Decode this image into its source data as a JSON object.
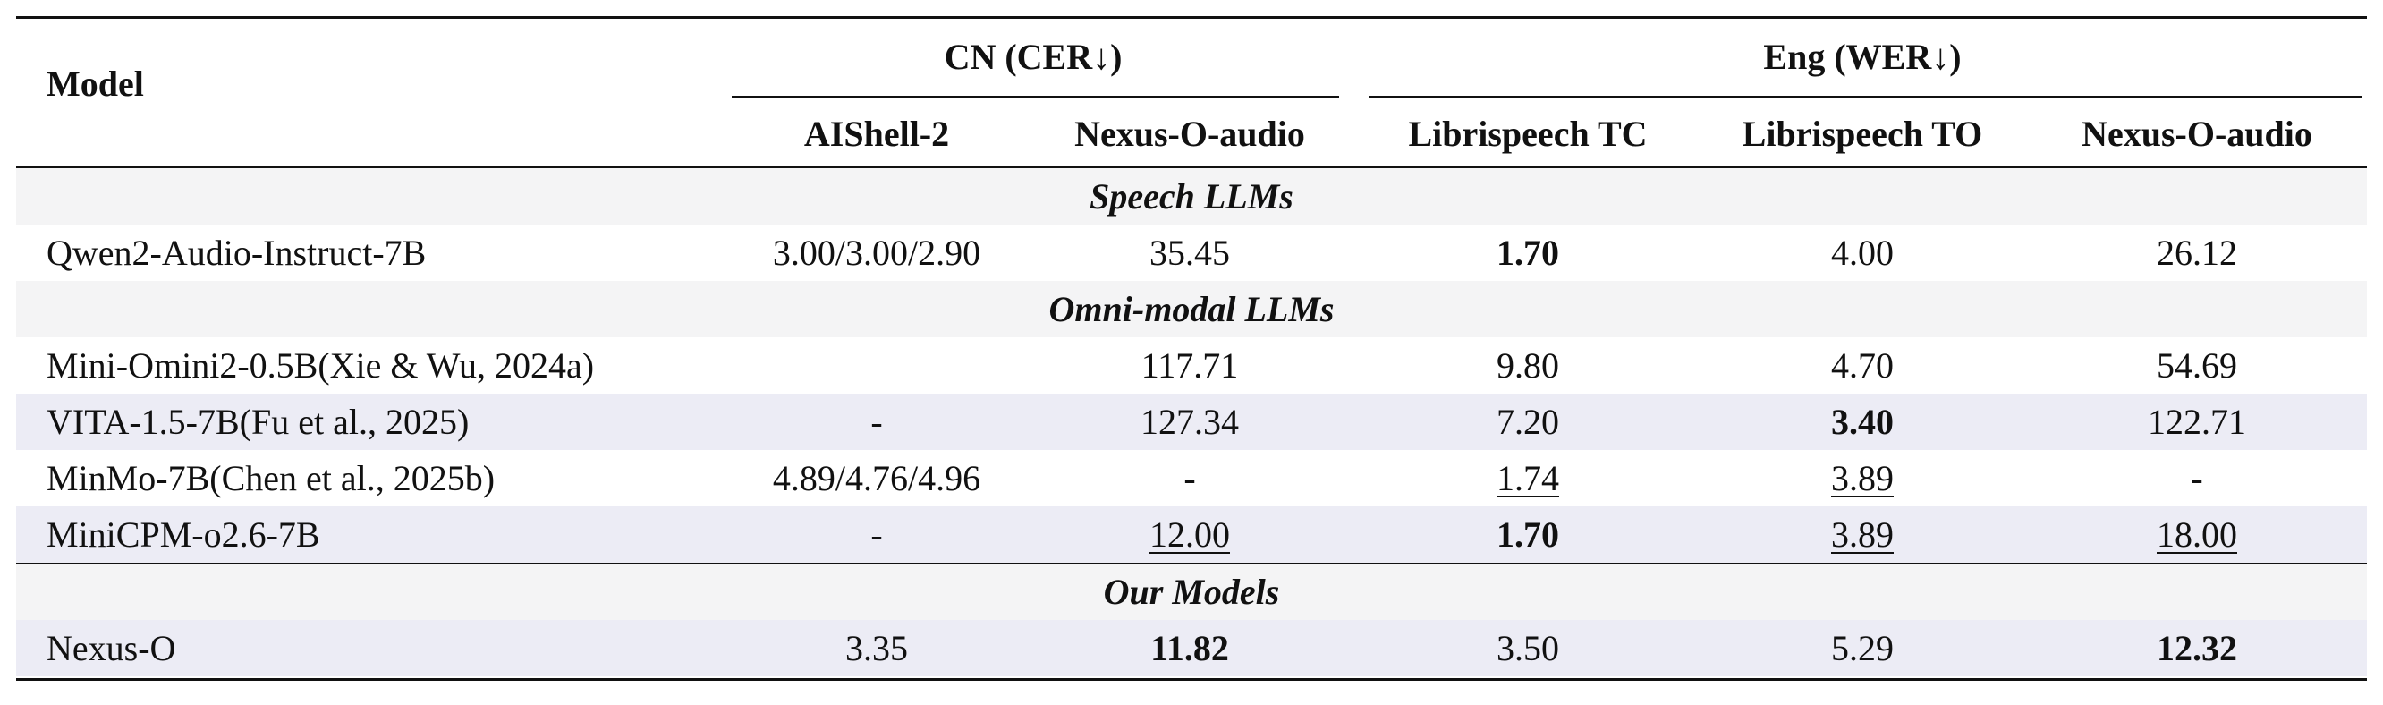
{
  "header": {
    "model_label": "Model",
    "groups": [
      {
        "label": "CN (CER↓)"
      },
      {
        "label": "Eng (WER↓)"
      }
    ],
    "columns": [
      "AIShell-2",
      "Nexus-O-audio",
      "Librispeech TC",
      "Librispeech TO",
      "Nexus-O-audio"
    ]
  },
  "sections": [
    {
      "title": "Speech LLMs",
      "rows": [
        {
          "model": "Qwen2-Audio-Instruct-7B",
          "cells": [
            {
              "v": "3.00/3.00/2.90",
              "s": ""
            },
            {
              "v": "35.45",
              "s": ""
            },
            {
              "v": "1.70",
              "s": "bold"
            },
            {
              "v": "4.00",
              "s": ""
            },
            {
              "v": "26.12",
              "s": ""
            }
          ]
        }
      ]
    },
    {
      "title": "Omni-modal LLMs",
      "rows": [
        {
          "model": "Mini-Omini2-0.5B(Xie & Wu, 2024a)",
          "cells": [
            {
              "v": "",
              "s": ""
            },
            {
              "v": "117.71",
              "s": ""
            },
            {
              "v": "9.80",
              "s": ""
            },
            {
              "v": "4.70",
              "s": ""
            },
            {
              "v": "54.69",
              "s": ""
            }
          ]
        },
        {
          "model": "VITA-1.5-7B(Fu et al., 2025)",
          "cells": [
            {
              "v": "-",
              "s": ""
            },
            {
              "v": "127.34",
              "s": ""
            },
            {
              "v": "7.20",
              "s": ""
            },
            {
              "v": "3.40",
              "s": "bold"
            },
            {
              "v": "122.71",
              "s": ""
            }
          ]
        },
        {
          "model": "MinMo-7B(Chen et al., 2025b)",
          "cells": [
            {
              "v": "4.89/4.76/4.96",
              "s": ""
            },
            {
              "v": "-",
              "s": ""
            },
            {
              "v": "1.74",
              "s": "ul"
            },
            {
              "v": "3.89",
              "s": "ul"
            },
            {
              "v": "-",
              "s": ""
            }
          ]
        },
        {
          "model": "MiniCPM-o2.6-7B",
          "cells": [
            {
              "v": "-",
              "s": ""
            },
            {
              "v": "12.00",
              "s": "ul"
            },
            {
              "v": "1.70",
              "s": "bold"
            },
            {
              "v": "3.89",
              "s": "ul"
            },
            {
              "v": "18.00",
              "s": "ul"
            }
          ]
        }
      ]
    },
    {
      "title": "Our Models",
      "rows": [
        {
          "model": "Nexus-O",
          "cells": [
            {
              "v": "3.35",
              "s": ""
            },
            {
              "v": "11.82",
              "s": "bold"
            },
            {
              "v": "3.50",
              "s": ""
            },
            {
              "v": "5.29",
              "s": ""
            },
            {
              "v": "12.32",
              "s": "bold"
            }
          ]
        }
      ]
    }
  ]
}
